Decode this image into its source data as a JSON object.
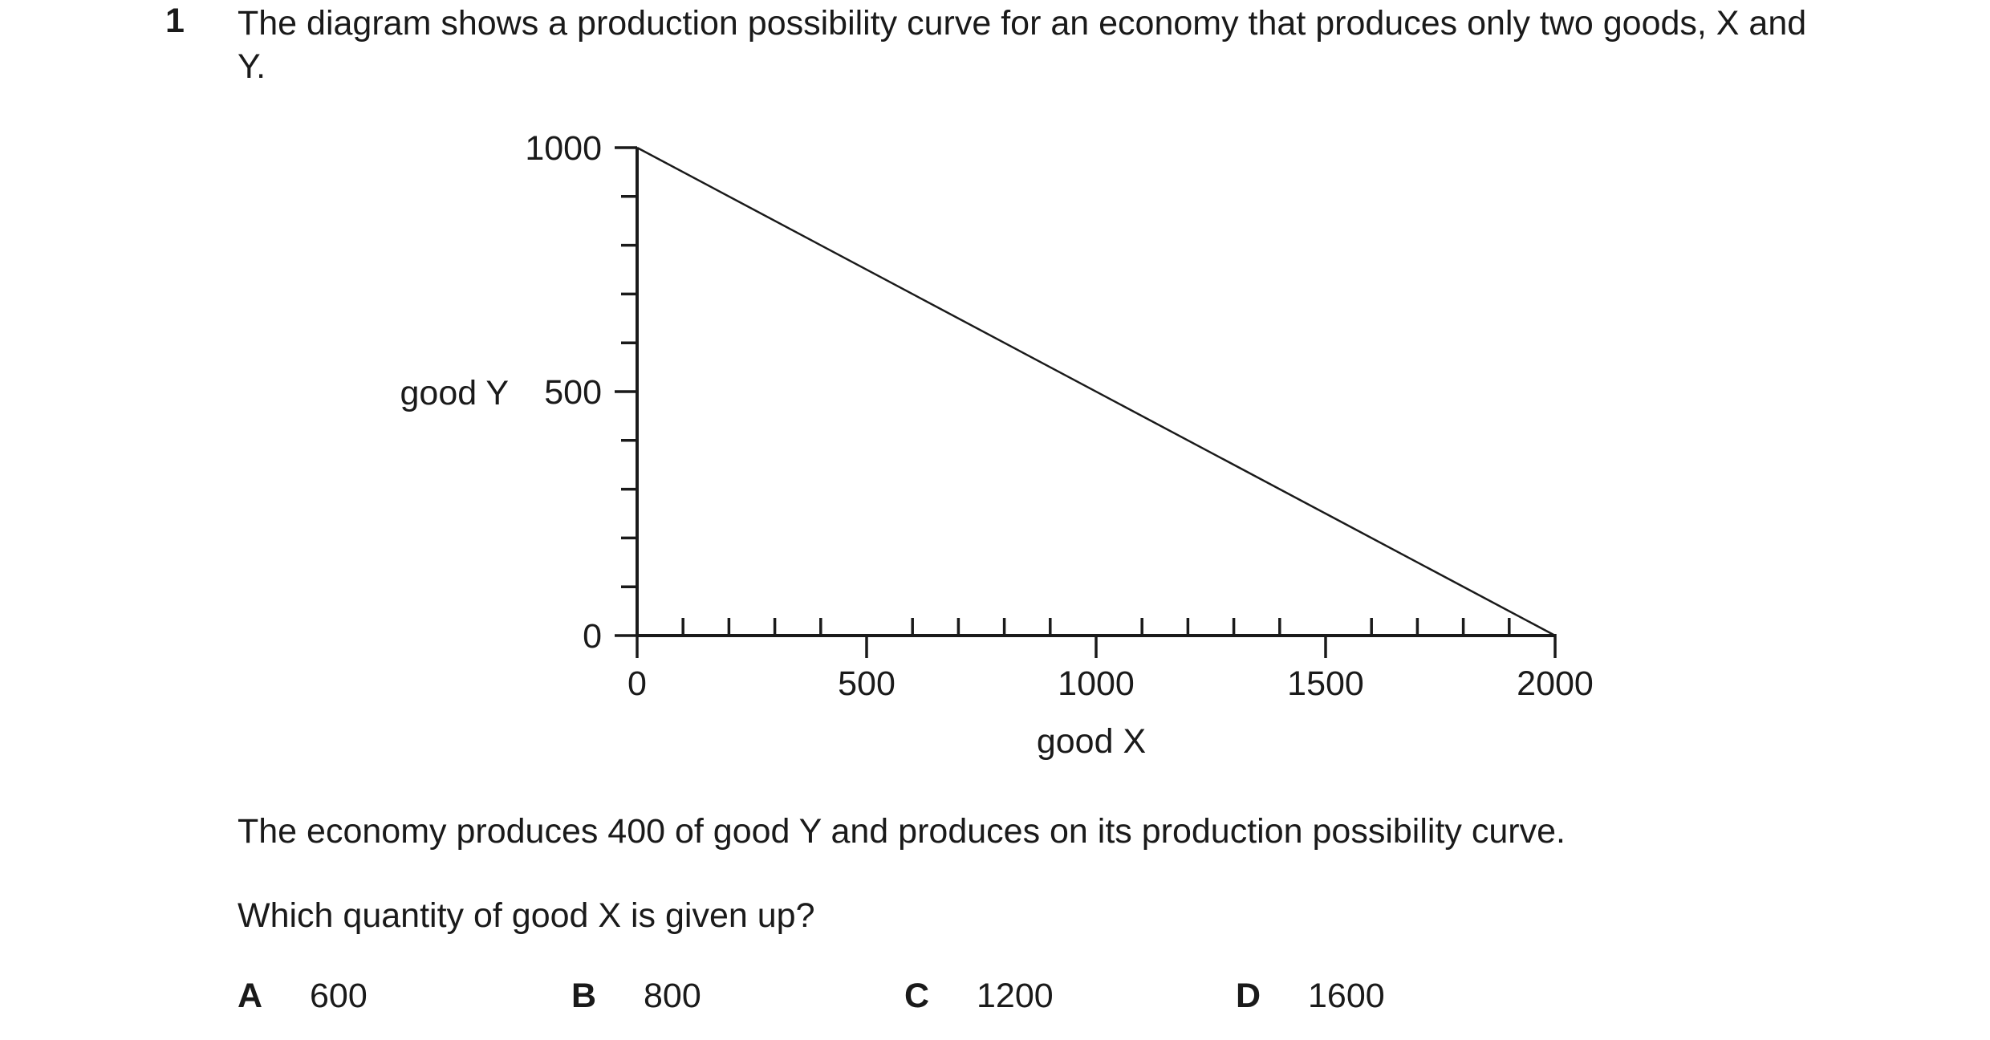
{
  "question": {
    "number": "1",
    "intro": "The diagram shows a production possibility curve for an economy that produces only two goods, X and Y.",
    "statement": "The economy produces 400 of good Y and produces on its production possibility curve.",
    "prompt": "Which quantity of good X is given up?",
    "options": [
      {
        "letter": "A",
        "value": "600"
      },
      {
        "letter": "B",
        "value": "800"
      },
      {
        "letter": "C",
        "value": "1200"
      },
      {
        "letter": "D",
        "value": "1600"
      }
    ]
  },
  "chart_data": {
    "type": "line",
    "title": "",
    "xlabel": "good X",
    "ylabel": "good Y",
    "xlim": [
      0,
      2000
    ],
    "ylim": [
      0,
      1000
    ],
    "x_ticks": [
      "0",
      "500",
      "1000",
      "1500",
      "2000"
    ],
    "y_ticks": [
      "0",
      "500",
      "1000"
    ],
    "x_minor_step": 100,
    "y_minor_step": 100,
    "grid": false,
    "series": [
      {
        "x": [
          0,
          2000
        ],
        "y": [
          1000,
          0
        ]
      }
    ]
  }
}
